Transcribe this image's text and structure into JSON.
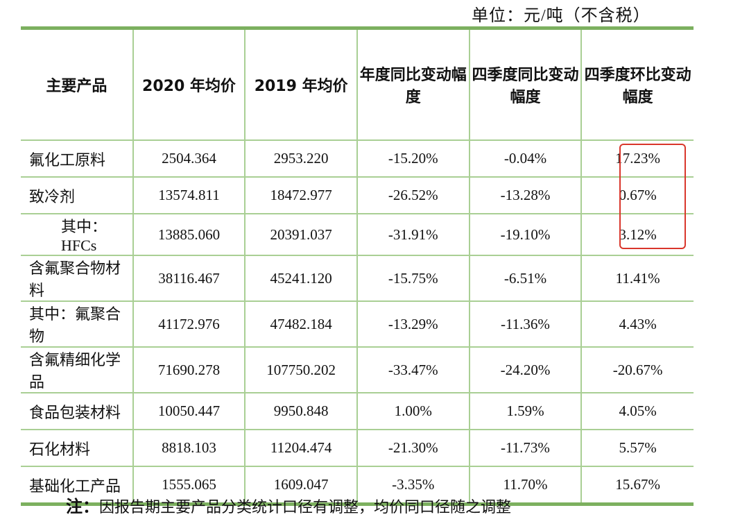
{
  "unit": "单位：元/吨（不含税）",
  "table": {
    "header": [
      "主要产品",
      "2020 年均价",
      "2019 年均价",
      "年度同比变动幅度",
      "四季度同比变动幅度",
      "四季度环比变动幅度"
    ],
    "rows": [
      [
        "氟化工原料",
        "2504.364",
        "2953.220",
        "-15.20%",
        "-0.04%",
        "17.23%"
      ],
      [
        "致冷剂",
        "13574.811",
        "18472.977",
        "-26.52%",
        "-13.28%",
        "0.67%"
      ],
      [
        "其中：HFCs",
        "13885.060",
        "20391.037",
        "-31.91%",
        "-19.10%",
        "3.12%"
      ],
      [
        "含氟聚合物材料",
        "38116.467",
        "45241.120",
        "-15.75%",
        "-6.51%",
        "11.41%"
      ],
      [
        "其中：氟聚合物",
        "41172.976",
        "47482.184",
        "-13.29%",
        "-11.36%",
        "4.43%"
      ],
      [
        "含氟精细化学品",
        "71690.278",
        "107750.202",
        "-33.47%",
        "-24.20%",
        "-20.67%"
      ],
      [
        "食品包装材料",
        "10050.447",
        "9950.848",
        "1.00%",
        "1.59%",
        "4.05%"
      ],
      [
        "石化材料",
        "8818.103",
        "11204.474",
        "-21.30%",
        "-11.73%",
        "5.57%"
      ],
      [
        "基础化工产品",
        "1555.065",
        "1609.047",
        "-3.35%",
        "11.70%",
        "15.67%"
      ]
    ]
  },
  "note": {
    "label": "注：",
    "text": "因报告期主要产品分类统计口径有调整，均价同口径随之调整"
  }
}
